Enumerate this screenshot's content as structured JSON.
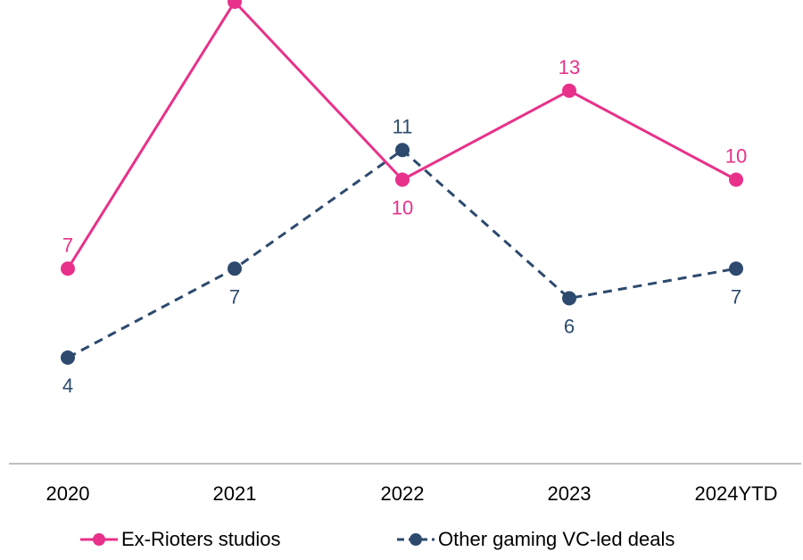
{
  "chart_data": {
    "type": "line",
    "title": "",
    "xlabel": "",
    "ylabel": "",
    "categories": [
      "2020",
      "2021",
      "2022",
      "2023",
      "2024YTD"
    ],
    "ylim": [
      0,
      17
    ],
    "grid": false,
    "legend_position": "bottom",
    "series": [
      {
        "name": "Ex-Rioters studios",
        "values": [
          7,
          16,
          10,
          13,
          10
        ],
        "color": "#e8318a",
        "line_style": "solid",
        "label_position": [
          "above",
          "above",
          "below",
          "above",
          "above"
        ]
      },
      {
        "name": "Other gaming VC-led deals",
        "values": [
          4,
          7,
          11,
          6,
          7
        ],
        "color": "#2d4a6e",
        "line_style": "dashed",
        "label_position": [
          "below",
          "below",
          "above",
          "below",
          "below"
        ]
      }
    ]
  }
}
